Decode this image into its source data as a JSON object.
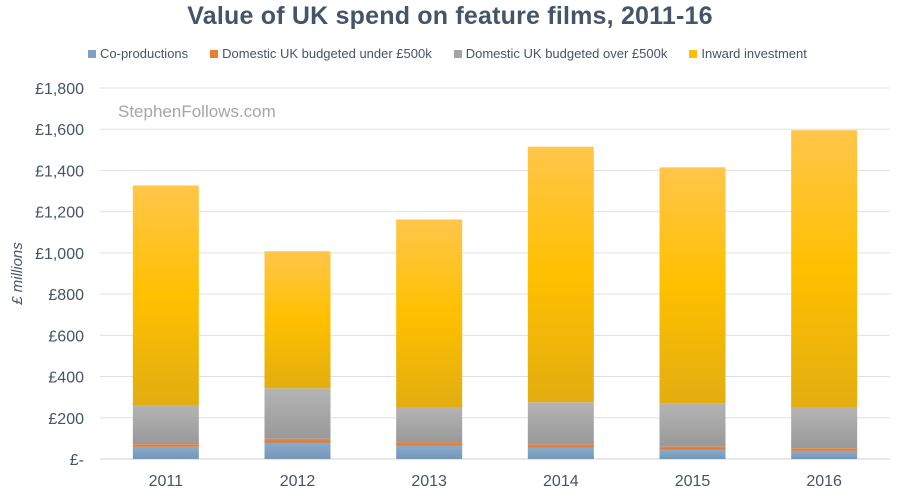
{
  "chart_data": {
    "type": "bar",
    "stacked": true,
    "title": "Value of UK spend on feature films, 2011-16",
    "watermark": "StephenFollows.com",
    "xlabel": "",
    "ylabel": "£ millions",
    "categories": [
      "2011",
      "2012",
      "2013",
      "2014",
      "2015",
      "2016"
    ],
    "ylim": [
      0,
      1800
    ],
    "yticks": [
      0,
      200,
      400,
      600,
      800,
      1000,
      1200,
      1400,
      1600,
      1800
    ],
    "ytick_labels": [
      "£-",
      "£200",
      "£400",
      "£600",
      "£800",
      "£1,000",
      "£1,200",
      "£1,400",
      "£1,600",
      "£1,800"
    ],
    "grid": true,
    "legend_position": "top",
    "series": [
      {
        "name": "Co-productions",
        "color": "#7fa1c2",
        "values": [
          60,
          80,
          65,
          55,
          45,
          40
        ]
      },
      {
        "name": "Domestic UK budgeted under £500k",
        "color": "#ed7d31",
        "values": [
          12,
          18,
          15,
          15,
          15,
          12
        ]
      },
      {
        "name": "Domestic UK budgeted over £500k",
        "color": "#a5a5a5",
        "values": [
          190,
          245,
          170,
          205,
          210,
          198
        ]
      },
      {
        "name": "Inward investment",
        "color": "#ffc000",
        "values": [
          1065,
          665,
          912,
          1240,
          1145,
          1345
        ]
      }
    ]
  }
}
